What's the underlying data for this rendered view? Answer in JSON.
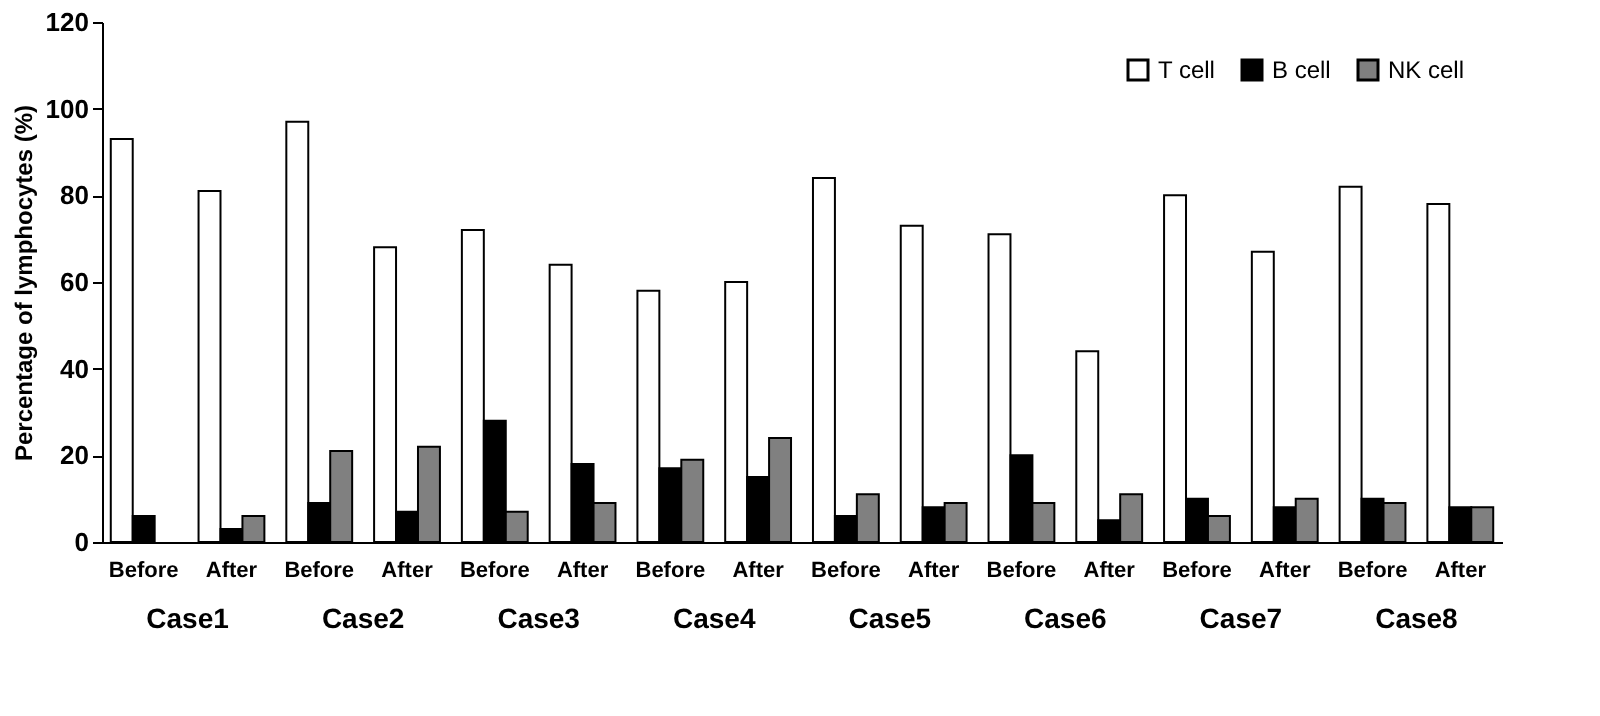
{
  "chart_data": {
    "type": "bar",
    "ylabel": "Percentage of lymphocytes (%)",
    "categories": [
      "Before",
      "After",
      "Before",
      "After",
      "Before",
      "After",
      "Before",
      "After",
      "Before",
      "After",
      "Before",
      "After",
      "Before",
      "After",
      "Before",
      "After"
    ],
    "series": [
      {
        "name": "T cell",
        "color": "#ffffff",
        "values": [
          93,
          81,
          97,
          68,
          72,
          64,
          58,
          60,
          84,
          73,
          71,
          44,
          80,
          67,
          82,
          78
        ]
      },
      {
        "name": "B cell",
        "color": "#000000",
        "values": [
          6,
          3,
          9,
          7,
          28,
          18,
          17,
          15,
          6,
          8,
          20,
          5,
          10,
          8,
          10,
          8
        ]
      },
      {
        "name": "NK cell",
        "color": "#808080",
        "values": [
          null,
          6,
          21,
          22,
          7,
          9,
          19,
          24,
          11,
          9,
          9,
          11,
          6,
          10,
          9,
          8
        ]
      }
    ],
    "annotations": [
      "Case1",
      "Case2",
      "Case3",
      "Case4",
      "Case5",
      "Case6",
      "Case7",
      "Case8"
    ],
    "ylim": [
      0,
      120
    ],
    "yticks": [
      0,
      20,
      40,
      60,
      80,
      100,
      120
    ],
    "grid": false,
    "legend": "top right"
  }
}
